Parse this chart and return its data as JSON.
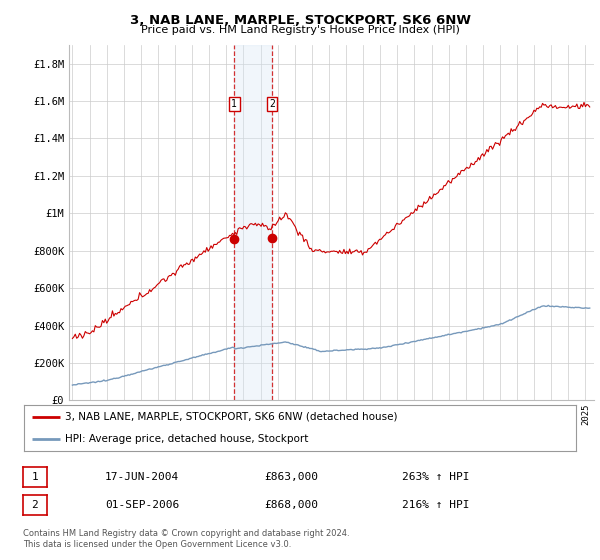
{
  "title": "3, NAB LANE, MARPLE, STOCKPORT, SK6 6NW",
  "subtitle": "Price paid vs. HM Land Registry's House Price Index (HPI)",
  "ylabel_ticks": [
    "£0",
    "£200K",
    "£400K",
    "£600K",
    "£800K",
    "£1M",
    "£1.2M",
    "£1.4M",
    "£1.6M",
    "£1.8M"
  ],
  "ylim": [
    0,
    1900000
  ],
  "xlim_start": 1994.8,
  "xlim_end": 2025.5,
  "sale1_date": 2004.46,
  "sale1_price": 863000,
  "sale1_label": "1",
  "sale2_date": 2006.67,
  "sale2_price": 868000,
  "sale2_label": "2",
  "legend_line1": "3, NAB LANE, MARPLE, STOCKPORT, SK6 6NW (detached house)",
  "legend_line2": "HPI: Average price, detached house, Stockport",
  "table_row1": [
    "1",
    "17-JUN-2004",
    "£863,000",
    "263% ↑ HPI"
  ],
  "table_row2": [
    "2",
    "01-SEP-2006",
    "£868,000",
    "216% ↑ HPI"
  ],
  "footer": "Contains HM Land Registry data © Crown copyright and database right 2024.\nThis data is licensed under the Open Government Licence v3.0.",
  "red_color": "#cc0000",
  "blue_color": "#7799bb",
  "shade_color": "#d8e8f5",
  "background_color": "#ffffff",
  "grid_color": "#cccccc"
}
